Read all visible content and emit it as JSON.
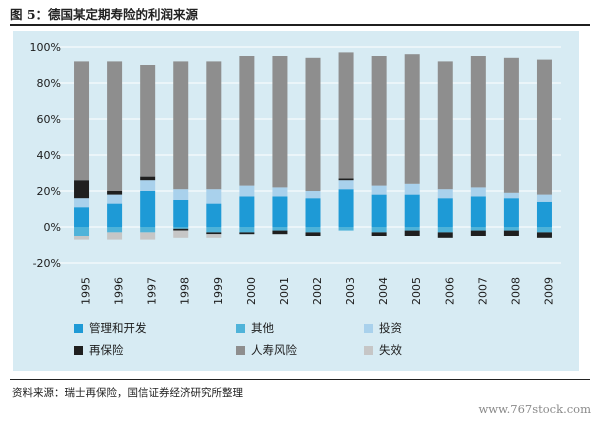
{
  "figure_title": "图 5：德国某定期寿险的利润来源",
  "source_note": "资料来源：瑞士再保险，国信证券经济研究所整理",
  "watermark": "www.767stock.com",
  "chart_data": {
    "type": "bar",
    "stacked": true,
    "title": "",
    "xlabel": "",
    "ylabel": "",
    "ylim": [
      -20,
      100
    ],
    "yticks": [
      "100%",
      "80%",
      "60%",
      "40%",
      "20%",
      "0%",
      "-20%"
    ],
    "ytick_values": [
      100,
      80,
      60,
      40,
      20,
      0,
      -20
    ],
    "grid": false,
    "legend_position": "bottom",
    "categories": [
      "1995",
      "1996",
      "1997",
      "1998",
      "1999",
      "2000",
      "2001",
      "2002",
      "2003",
      "2004",
      "2005",
      "2006",
      "2007",
      "2008",
      "2009"
    ],
    "series": [
      {
        "name": "管理和开发",
        "color": "#1e9ad6",
        "values": [
          11,
          13,
          20,
          15,
          13,
          17,
          17,
          16,
          21,
          18,
          18,
          16,
          17,
          16,
          14
        ]
      },
      {
        "name": "其他",
        "color": "#4fb3d9",
        "values": [
          -5,
          -3,
          -3,
          -1,
          -3,
          -3,
          -2,
          -3,
          -2,
          -3,
          -2,
          -3,
          -2,
          -2,
          -3
        ]
      },
      {
        "name": "投资",
        "color": "#a9d1ec",
        "values": [
          5,
          5,
          6,
          6,
          8,
          6,
          5,
          4,
          5,
          5,
          6,
          5,
          5,
          3,
          4
        ]
      },
      {
        "name": "再保险",
        "color": "#1f1f1f",
        "values": [
          10,
          2,
          2,
          -1,
          -1,
          -1,
          -2,
          -2,
          1,
          -2,
          -3,
          -3,
          -3,
          -3,
          -3
        ]
      },
      {
        "name": "人寿风险",
        "color": "#8e8e8e",
        "values": [
          66,
          72,
          62,
          71,
          71,
          72,
          73,
          74,
          70,
          72,
          72,
          71,
          73,
          75,
          75
        ]
      },
      {
        "name": "失效",
        "color": "#c6c6c6",
        "values": [
          -2,
          -4,
          -4,
          -4,
          -2,
          0,
          0,
          0,
          0,
          0,
          0,
          0,
          0,
          0,
          0
        ]
      }
    ]
  }
}
